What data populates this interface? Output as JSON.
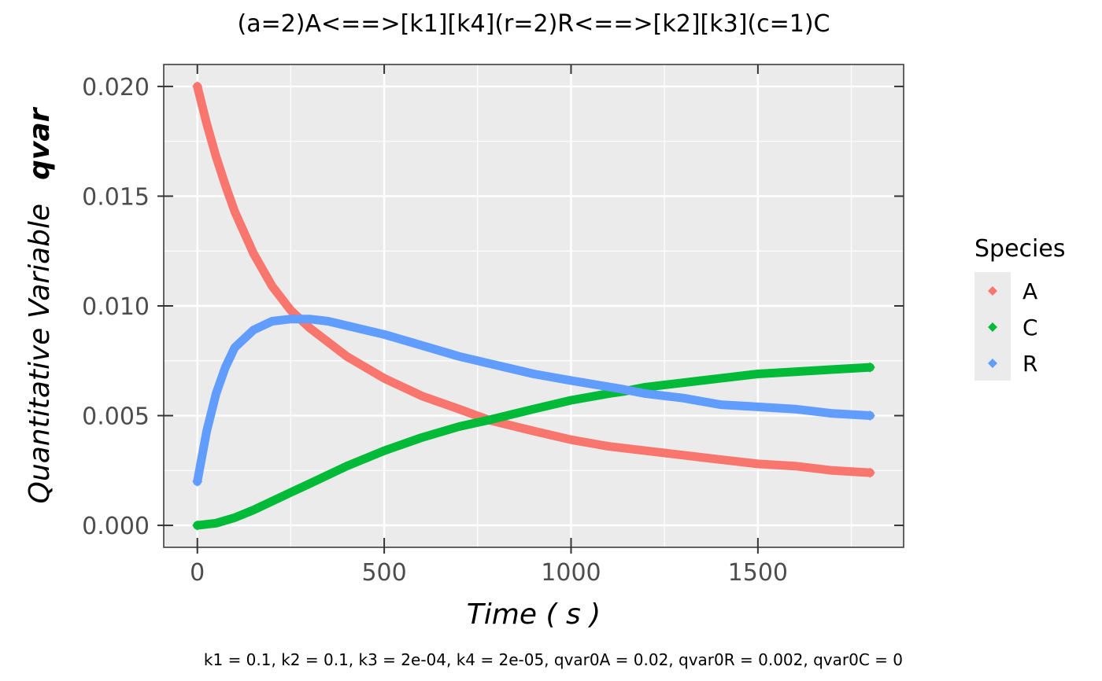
{
  "chart_data": {
    "type": "line",
    "title": "(a=2)A<==>[k1][k4](r=2)R<==>[k2][k3](c=1)C",
    "caption": "k1 = 0.1, k2 = 0.1, k3 = 2e-04, k4 = 2e-05, qvar0A = 0.02, qvar0R = 0.002, qvar0C = 0",
    "xlabel": "Time ( s )",
    "ylabel_main": "Quantitative Variable",
    "ylabel_bold": "qvar",
    "xlim": [
      -90,
      1890
    ],
    "ylim": [
      -0.001,
      0.021
    ],
    "x_ticks": [
      0,
      500,
      1000,
      1500
    ],
    "x_tick_labels": [
      "0",
      "500",
      "1000",
      "1500"
    ],
    "x_minor": [
      250,
      750,
      1250,
      1750
    ],
    "y_ticks": [
      0,
      0.005,
      0.01,
      0.015,
      0.02
    ],
    "y_tick_labels": [
      "0.000",
      "0.005",
      "0.010",
      "0.015",
      "0.020"
    ],
    "y_minor": [
      0.0025,
      0.0075,
      0.0125,
      0.0175
    ],
    "grid": true,
    "legend": {
      "title": "Species",
      "position": "right"
    },
    "series": [
      {
        "name": "A",
        "color": "#F8766D",
        "x": [
          0,
          25,
          50,
          75,
          100,
          150,
          200,
          250,
          300,
          400,
          500,
          600,
          700,
          780,
          900,
          1000,
          1100,
          1200,
          1300,
          1400,
          1500,
          1600,
          1700,
          1800
        ],
        "y": [
          0.02,
          0.0183,
          0.0168,
          0.0155,
          0.0143,
          0.0124,
          0.0109,
          0.0098,
          0.009,
          0.0077,
          0.0067,
          0.0059,
          0.0053,
          0.0048,
          0.0043,
          0.0039,
          0.0036,
          0.0034,
          0.0032,
          0.003,
          0.0028,
          0.0027,
          0.0025,
          0.0024
        ]
      },
      {
        "name": "C",
        "color": "#00BA38",
        "x": [
          0,
          50,
          100,
          150,
          200,
          250,
          300,
          400,
          500,
          600,
          700,
          780,
          900,
          1000,
          1100,
          1140,
          1200,
          1300,
          1400,
          1500,
          1600,
          1700,
          1800
        ],
        "y": [
          0,
          0.0001,
          0.00035,
          0.0007,
          0.0011,
          0.0015,
          0.0019,
          0.0027,
          0.0034,
          0.004,
          0.0045,
          0.0048,
          0.0053,
          0.0057,
          0.006,
          0.0061,
          0.0063,
          0.0065,
          0.0067,
          0.0069,
          0.007,
          0.0071,
          0.0072
        ]
      },
      {
        "name": "R",
        "color": "#619CFF",
        "x": [
          0,
          25,
          50,
          75,
          100,
          150,
          200,
          250,
          300,
          350,
          400,
          500,
          600,
          700,
          800,
          900,
          1000,
          1140,
          1200,
          1300,
          1400,
          1500,
          1600,
          1700,
          1800
        ],
        "y": [
          0.002,
          0.0043,
          0.006,
          0.0072,
          0.0081,
          0.0089,
          0.0093,
          0.0094,
          0.0094,
          0.0093,
          0.0091,
          0.0087,
          0.0082,
          0.0077,
          0.0073,
          0.0069,
          0.0066,
          0.0062,
          0.006,
          0.0058,
          0.0055,
          0.0054,
          0.0053,
          0.0051,
          0.005
        ]
      }
    ]
  }
}
